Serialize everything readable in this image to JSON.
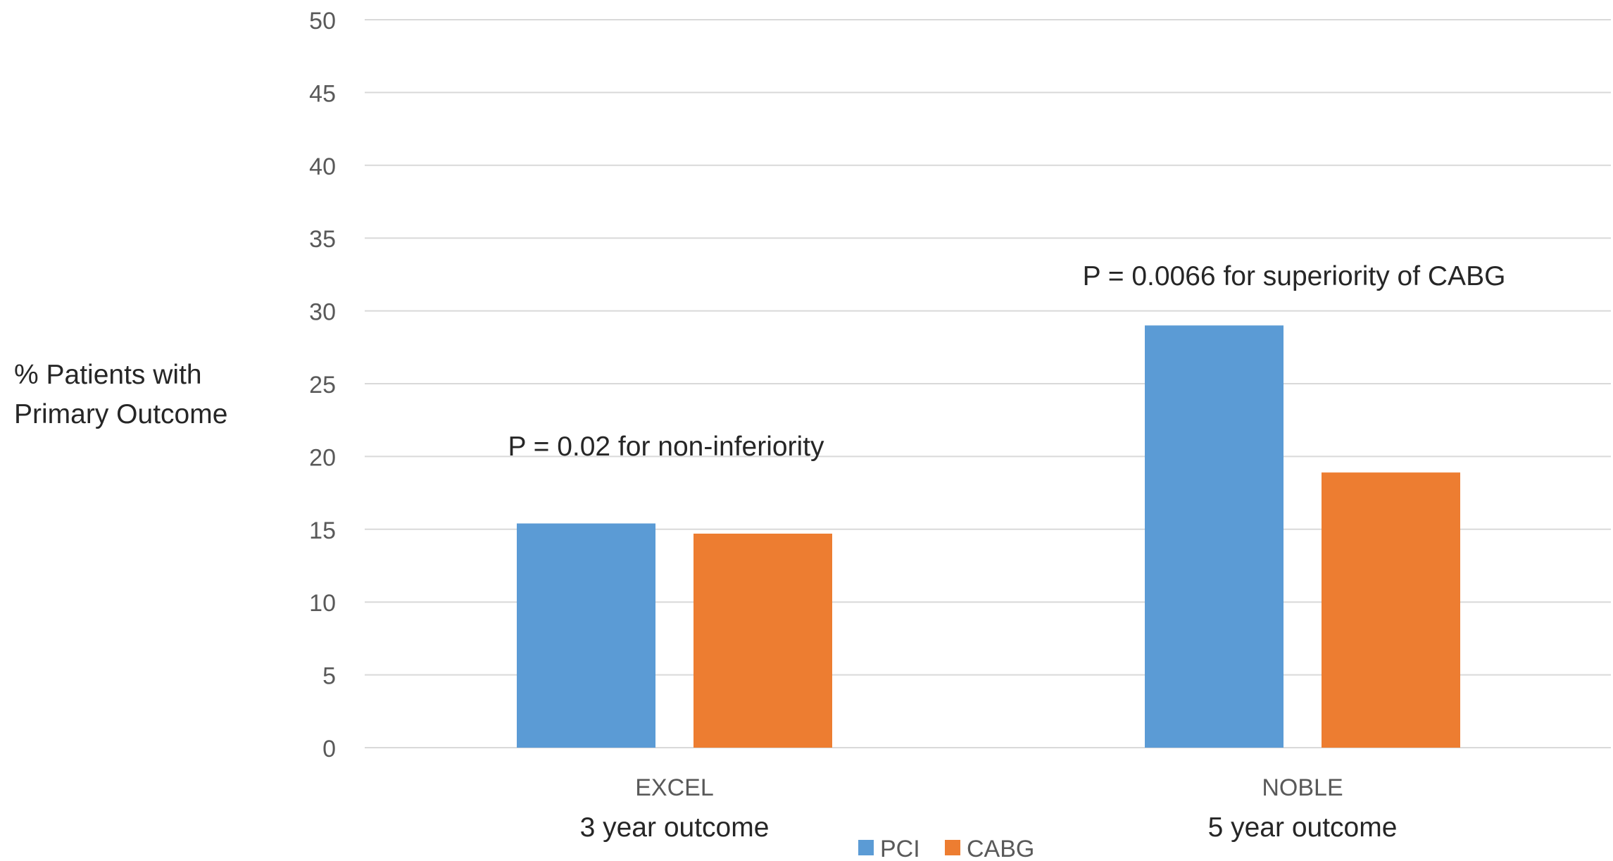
{
  "chart_data": {
    "type": "bar",
    "title": "",
    "ylabel_lines": [
      "% Patients with",
      "Primary Outcome"
    ],
    "ylim": [
      0,
      50
    ],
    "yticks": [
      0,
      5,
      10,
      15,
      20,
      25,
      30,
      35,
      40,
      45,
      50
    ],
    "grid": true,
    "legend_position": "bottom-center",
    "categories": [
      "EXCEL",
      "NOBLE"
    ],
    "category_sublabels": [
      "3 year outcome",
      "5 year outcome"
    ],
    "series": [
      {
        "name": "PCI",
        "color": "#5b9bd5",
        "values": [
          15.4,
          29
        ]
      },
      {
        "name": "CABG",
        "color": "#ed7d31",
        "values": [
          14.7,
          18.9
        ]
      }
    ],
    "annotations": [
      {
        "category": "EXCEL",
        "text": "P = 0.02 for non-inferiority"
      },
      {
        "category": "NOBLE",
        "text": "P = 0.0066 for superiority of CABG"
      }
    ]
  }
}
